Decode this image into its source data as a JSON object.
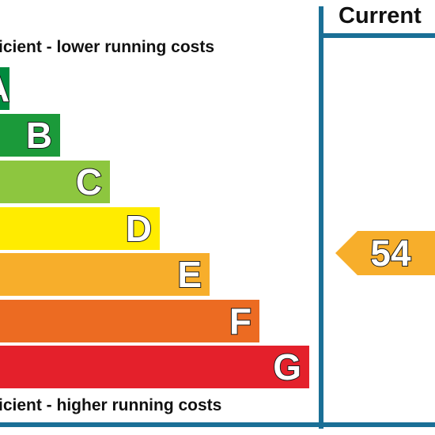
{
  "captions": {
    "top": "icient - lower running costs",
    "bottom": "icient - higher running costs"
  },
  "bands": [
    {
      "letter": "A",
      "color": "#008a3e"
    },
    {
      "letter": "B",
      "color": "#1b9a3a"
    },
    {
      "letter": "C",
      "color": "#8dc63f"
    },
    {
      "letter": "D",
      "color": "#ffec00"
    },
    {
      "letter": "E",
      "color": "#f7ae2b"
    },
    {
      "letter": "F",
      "color": "#ec6b22"
    },
    {
      "letter": "G",
      "color": "#e4202b"
    }
  ],
  "current": {
    "header": "Current",
    "rating": "54",
    "color": "#f7ae2b"
  },
  "rule_color": "#1a6f96"
}
